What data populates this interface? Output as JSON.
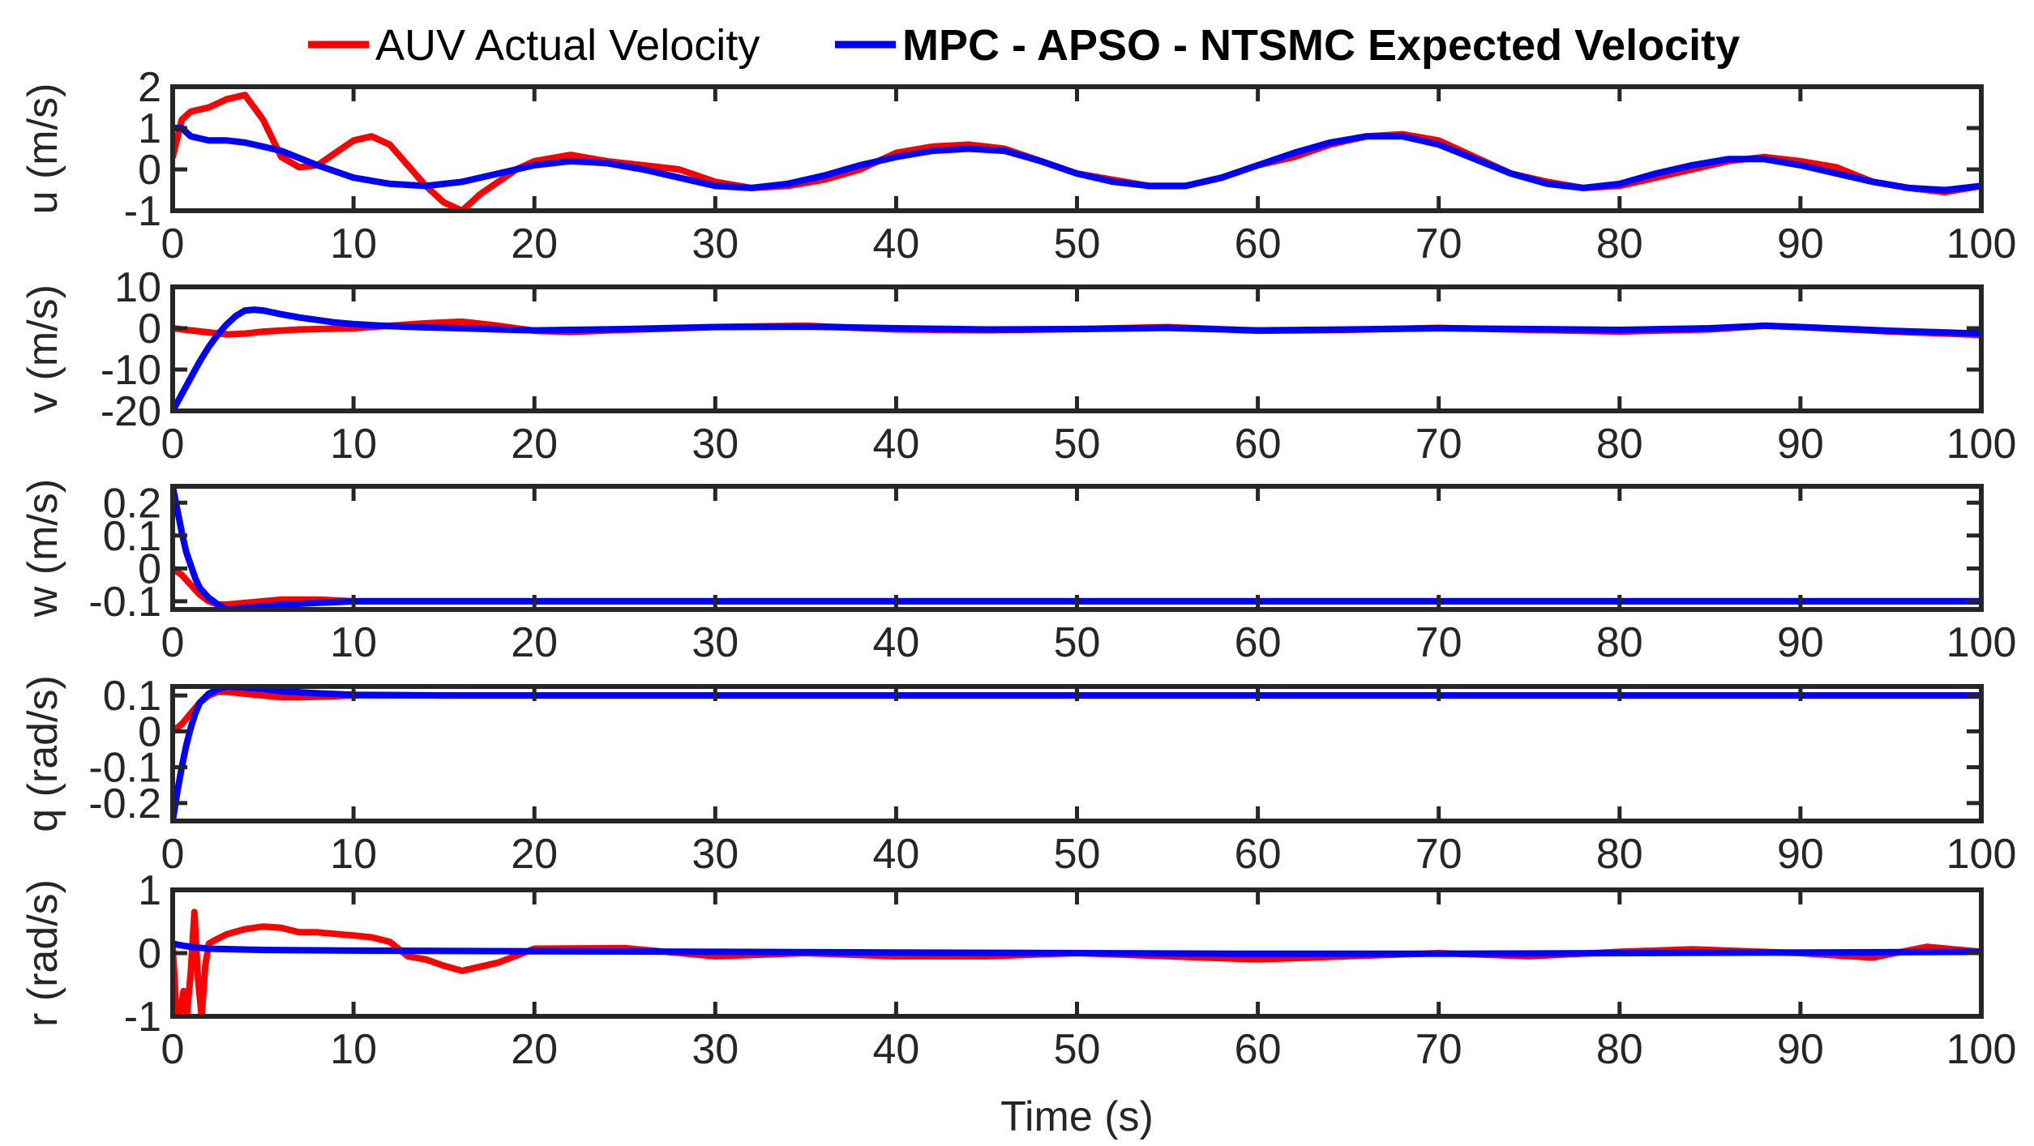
{
  "chart_data": {
    "type": "line",
    "legend": {
      "placement": "top",
      "entries": [
        {
          "name": "AUV Actual Velocity",
          "color": "#ff0000"
        },
        {
          "name": "MPC - APSO - NTSMC Expected Velocity",
          "color": "#0000ff"
        }
      ]
    },
    "xlabel": "Time (s)",
    "xlim": [
      0,
      100
    ],
    "xticks": [
      0,
      10,
      20,
      30,
      40,
      50,
      60,
      70,
      80,
      90,
      100
    ],
    "xtick_labels": [
      "0",
      "10",
      "20",
      "30",
      "40",
      "50",
      "60",
      "70",
      "80",
      "90",
      "100"
    ],
    "subplots": [
      {
        "ylabel": "u (m/s)",
        "ylim": [
          -1,
          2
        ],
        "yticks": [
          -1,
          0,
          1,
          2
        ],
        "ytick_labels": [
          "-1",
          "0",
          "1",
          "2"
        ],
        "series": [
          {
            "name": "AUV Actual Velocity",
            "x": [
              0,
              0.5,
              1,
              2,
              3,
              4,
              5,
              6,
              7,
              8,
              9,
              10,
              11,
              12,
              13,
              14,
              15,
              16,
              17,
              18,
              19,
              20,
              22,
              24,
              26,
              28,
              30,
              32,
              34,
              36,
              38,
              40,
              42,
              44,
              46,
              48,
              50,
              52,
              54,
              56,
              58,
              60,
              62,
              64,
              66,
              68,
              70,
              72,
              74,
              76,
              78,
              80,
              82,
              84,
              86,
              88,
              90,
              92,
              94,
              96,
              98,
              100
            ],
            "y": [
              0.3,
              1.2,
              1.4,
              1.5,
              1.7,
              1.8,
              1.2,
              0.3,
              0.05,
              0.1,
              0.4,
              0.7,
              0.8,
              0.6,
              0.1,
              -0.4,
              -0.8,
              -1.0,
              -0.6,
              -0.3,
              0.0,
              0.2,
              0.35,
              0.2,
              0.1,
              0.0,
              -0.3,
              -0.45,
              -0.4,
              -0.25,
              0.0,
              0.4,
              0.55,
              0.6,
              0.5,
              0.2,
              -0.1,
              -0.25,
              -0.4,
              -0.4,
              -0.2,
              0.1,
              0.3,
              0.6,
              0.8,
              0.85,
              0.7,
              0.3,
              -0.1,
              -0.3,
              -0.45,
              -0.4,
              -0.2,
              0.0,
              0.2,
              0.3,
              0.2,
              0.05,
              -0.3,
              -0.45,
              -0.55,
              -0.4
            ]
          },
          {
            "name": "MPC - APSO - NTSMC Expected Velocity",
            "x": [
              0,
              0.5,
              1,
              2,
              3,
              4,
              5,
              6,
              8,
              10,
              12,
              14,
              16,
              18,
              20,
              22,
              24,
              26,
              28,
              30,
              32,
              34,
              36,
              38,
              40,
              42,
              44,
              46,
              48,
              50,
              52,
              54,
              56,
              58,
              60,
              62,
              64,
              66,
              68,
              70,
              72,
              74,
              76,
              78,
              80,
              82,
              84,
              86,
              88,
              90,
              92,
              94,
              96,
              98,
              100
            ],
            "y": [
              1.0,
              1.0,
              0.8,
              0.7,
              0.7,
              0.65,
              0.55,
              0.45,
              0.1,
              -0.2,
              -0.35,
              -0.4,
              -0.3,
              -0.1,
              0.1,
              0.2,
              0.15,
              0.0,
              -0.2,
              -0.4,
              -0.45,
              -0.35,
              -0.15,
              0.1,
              0.3,
              0.45,
              0.5,
              0.45,
              0.2,
              -0.1,
              -0.3,
              -0.4,
              -0.4,
              -0.2,
              0.1,
              0.4,
              0.65,
              0.8,
              0.8,
              0.6,
              0.25,
              -0.1,
              -0.35,
              -0.45,
              -0.35,
              -0.1,
              0.1,
              0.25,
              0.25,
              0.1,
              -0.1,
              -0.3,
              -0.45,
              -0.5,
              -0.4
            ]
          }
        ]
      },
      {
        "ylabel": "v (m/s)",
        "ylim": [
          -20,
          10
        ],
        "yticks": [
          -20,
          -10,
          0,
          10
        ],
        "ytick_labels": [
          "-20",
          "-10",
          "0",
          "10"
        ],
        "series": [
          {
            "name": "AUV Actual Velocity",
            "x": [
              0,
              1,
              2,
              3,
              4,
              5,
              7,
              10,
              12,
              14,
              16,
              18,
              20,
              22,
              25,
              28,
              30,
              35,
              40,
              45,
              50,
              55,
              60,
              65,
              70,
              75,
              80,
              85,
              88,
              90,
              95,
              100
            ],
            "y": [
              0,
              -0.5,
              -1.0,
              -1.5,
              -1.3,
              -0.8,
              -0.3,
              0.0,
              0.6,
              1.2,
              1.6,
              0.6,
              -0.6,
              -0.9,
              -0.4,
              0.0,
              0.3,
              0.6,
              -0.3,
              -0.5,
              -0.2,
              0.3,
              -0.6,
              -0.4,
              0.1,
              -0.4,
              -0.8,
              -0.3,
              0.6,
              0.3,
              -0.8,
              -1.6
            ]
          },
          {
            "name": "MPC - APSO - NTSMC Expected Velocity",
            "x": [
              0,
              0.5,
              1,
              1.5,
              2,
              2.5,
              3,
              3.5,
              4,
              4.5,
              5,
              6,
              7,
              8,
              9,
              10,
              12,
              14,
              16,
              18,
              20,
              25,
              30,
              35,
              40,
              45,
              50,
              55,
              60,
              65,
              70,
              75,
              80,
              85,
              88,
              90,
              95,
              100
            ],
            "y": [
              -20,
              -16,
              -12,
              -8,
              -4.5,
              -1.5,
              1.0,
              3.0,
              4.3,
              4.5,
              4.3,
              3.4,
              2.6,
              2.0,
              1.4,
              1.0,
              0.5,
              0.2,
              0.0,
              -0.3,
              -0.5,
              -0.2,
              0.3,
              0.4,
              0.0,
              -0.3,
              -0.2,
              0.1,
              -0.5,
              -0.3,
              0.0,
              -0.2,
              -0.4,
              0.0,
              0.6,
              0.3,
              -0.6,
              -1.3
            ]
          }
        ]
      },
      {
        "ylabel": "w (m/s)",
        "ylim": [
          -0.125,
          0.25
        ],
        "yticks": [
          -0.1,
          0,
          0.1,
          0.2
        ],
        "ytick_labels": [
          "-0.1",
          "0",
          "0.1",
          "0.2"
        ],
        "series": [
          {
            "name": "AUV Actual Velocity",
            "x": [
              0,
              0.5,
              1,
              1.5,
              2,
              2.5,
              3,
              4,
              5,
              6,
              7,
              8,
              9,
              10,
              12,
              15,
              20,
              30,
              40,
              50,
              60,
              70,
              80,
              90,
              100
            ],
            "y": [
              0.0,
              -0.02,
              -0.05,
              -0.08,
              -0.1,
              -0.11,
              -0.11,
              -0.105,
              -0.1,
              -0.095,
              -0.095,
              -0.095,
              -0.097,
              -0.1,
              -0.1,
              -0.1,
              -0.1,
              -0.1,
              -0.1,
              -0.1,
              -0.1,
              -0.1,
              -0.1,
              -0.1,
              -0.1
            ]
          },
          {
            "name": "MPC - APSO - NTSMC Expected Velocity",
            "x": [
              0,
              0.25,
              0.5,
              0.75,
              1,
              1.25,
              1.5,
              2,
              2.5,
              3,
              4,
              5,
              6,
              8,
              10,
              15,
              20,
              30,
              40,
              50,
              60,
              70,
              80,
              90,
              100
            ],
            "y": [
              0.25,
              0.18,
              0.11,
              0.05,
              0.01,
              -0.03,
              -0.06,
              -0.09,
              -0.11,
              -0.125,
              -0.12,
              -0.115,
              -0.11,
              -0.105,
              -0.1,
              -0.1,
              -0.1,
              -0.1,
              -0.1,
              -0.1,
              -0.1,
              -0.1,
              -0.1,
              -0.1,
              -0.1
            ]
          }
        ]
      },
      {
        "ylabel": "q (rad/s)",
        "ylim": [
          -0.25,
          0.125
        ],
        "yticks": [
          -0.2,
          -0.1,
          0,
          0.1
        ],
        "ytick_labels": [
          "-0.2",
          "-0.1",
          "0",
          "0.1"
        ],
        "series": [
          {
            "name": "AUV Actual Velocity",
            "x": [
              0,
              0.5,
              1,
              1.5,
              2,
              2.5,
              3,
              4,
              5,
              6,
              7,
              8,
              9,
              10,
              12,
              15,
              20,
              30,
              40,
              50,
              60,
              70,
              80,
              90,
              100
            ],
            "y": [
              0.0,
              0.02,
              0.05,
              0.08,
              0.1,
              0.11,
              0.11,
              0.105,
              0.1,
              0.095,
              0.095,
              0.096,
              0.098,
              0.1,
              0.1,
              0.1,
              0.1,
              0.1,
              0.1,
              0.1,
              0.1,
              0.1,
              0.1,
              0.1,
              0.1
            ]
          },
          {
            "name": "MPC - APSO - NTSMC Expected Velocity",
            "x": [
              0,
              0.25,
              0.5,
              0.75,
              1,
              1.25,
              1.5,
              2,
              2.5,
              3,
              4,
              5,
              6,
              8,
              10,
              15,
              20,
              30,
              40,
              50,
              60,
              70,
              80,
              90,
              100
            ],
            "y": [
              -0.25,
              -0.17,
              -0.1,
              -0.04,
              0.01,
              0.05,
              0.08,
              0.105,
              0.118,
              0.125,
              0.122,
              0.118,
              0.112,
              0.106,
              0.102,
              0.1,
              0.1,
              0.1,
              0.1,
              0.1,
              0.1,
              0.1,
              0.1,
              0.1,
              0.1
            ]
          }
        ]
      },
      {
        "ylabel": "r (rad/s)",
        "ylim": [
          -1,
          1
        ],
        "yticks": [
          -1,
          0,
          1
        ],
        "ytick_labels": [
          "-1",
          "0",
          "1"
        ],
        "series": [
          {
            "name": "AUV Actual Velocity",
            "x": [
              0,
              0.2,
              0.4,
              0.6,
              0.8,
              1.0,
              1.2,
              1.4,
              1.6,
              1.8,
              2.0,
              2.3,
              3,
              4,
              5,
              6,
              7,
              8,
              10,
              11,
              12,
              13,
              14,
              15,
              16,
              18,
              20,
              25,
              30,
              35,
              40,
              45,
              50,
              55,
              60,
              65,
              70,
              75,
              80,
              84,
              90,
              94,
              97,
              100
            ],
            "y": [
              0.1,
              -0.9,
              -1.0,
              -0.6,
              -0.95,
              -0.3,
              0.65,
              -0.4,
              -1.0,
              -0.2,
              0.15,
              0.2,
              0.3,
              0.38,
              0.42,
              0.4,
              0.33,
              0.33,
              0.28,
              0.25,
              0.18,
              -0.05,
              -0.1,
              -0.2,
              -0.28,
              -0.15,
              0.07,
              0.08,
              -0.05,
              0.0,
              -0.05,
              -0.05,
              0.0,
              -0.05,
              -0.1,
              -0.05,
              0.0,
              -0.05,
              0.02,
              0.06,
              0.0,
              -0.07,
              0.1,
              0.02
            ]
          },
          {
            "name": "MPC - APSO - NTSMC Expected Velocity",
            "x": [
              0,
              0.5,
              1,
              2,
              5,
              10,
              20,
              30,
              40,
              50,
              60,
              70,
              80,
              90,
              100
            ],
            "y": [
              0.15,
              0.12,
              0.1,
              0.07,
              0.05,
              0.04,
              0.03,
              0.02,
              0.01,
              0.0,
              -0.01,
              -0.01,
              0.0,
              0.01,
              0.02
            ]
          }
        ]
      }
    ]
  }
}
